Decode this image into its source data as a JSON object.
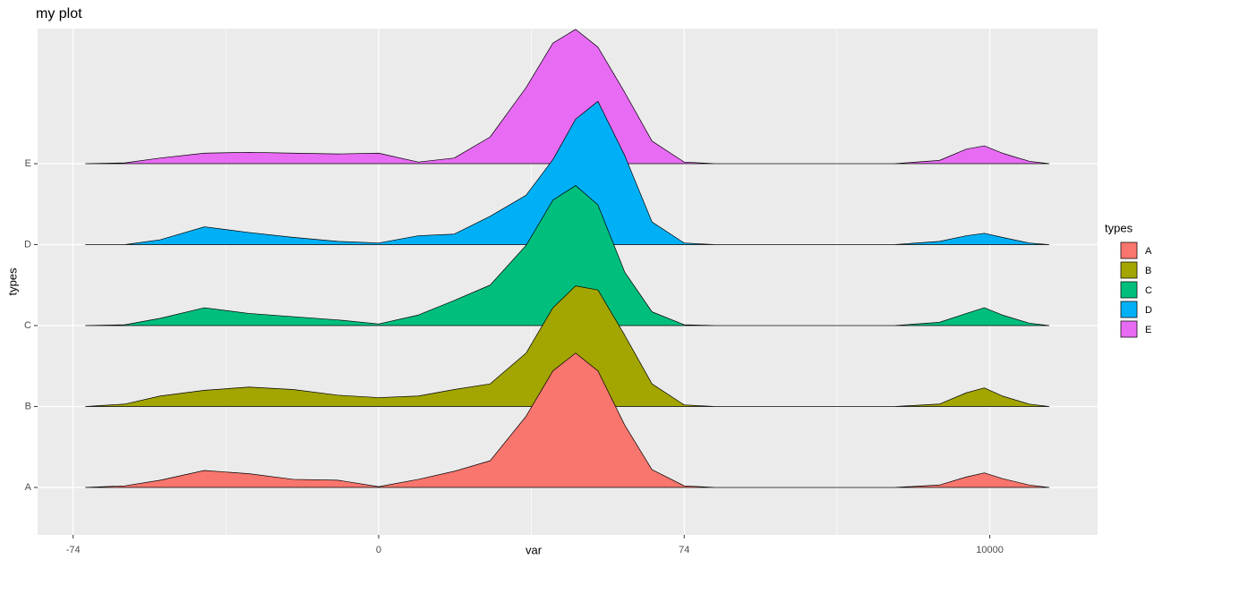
{
  "chart_data": {
    "type": "ridgeline",
    "title": "my plot",
    "xlabel": "var",
    "ylabel": "types",
    "legend_title": "types",
    "legend_position": "right",
    "grid": true,
    "categories": [
      "A",
      "B",
      "C",
      "D",
      "E"
    ],
    "xlim": [
      -82.6,
      13503
    ],
    "xticks": [
      -74,
      0,
      74,
      10000
    ],
    "x": [
      -71,
      -61.5,
      -52.9,
      -42.2,
      -31.4,
      -20.7,
      -9.9,
      0,
      9.6,
      18.3,
      27.0,
      35.7,
      42.2,
      47.7,
      53.1,
      59.6,
      66.2,
      74,
      1067,
      3986,
      6905,
      8364,
      9240,
      9824,
      10407,
      11283,
      11925
    ],
    "series": [
      {
        "name": "A",
        "color": "#F8766D",
        "values": [
          0,
          0.02,
          0.09,
          0.21,
          0.17,
          0.1,
          0.09,
          0.01,
          0.1,
          0.2,
          0.33,
          0.88,
          1.44,
          1.66,
          1.44,
          0.77,
          0.22,
          0.02,
          0,
          0,
          0,
          0.03,
          0.13,
          0.18,
          0.11,
          0.03,
          0
        ]
      },
      {
        "name": "B",
        "color": "#A3A500",
        "values": [
          0,
          0.03,
          0.13,
          0.2,
          0.24,
          0.21,
          0.14,
          0.11,
          0.13,
          0.21,
          0.28,
          0.66,
          1.22,
          1.49,
          1.44,
          0.88,
          0.28,
          0.02,
          0,
          0,
          0,
          0.03,
          0.17,
          0.23,
          0.13,
          0.03,
          0
        ]
      },
      {
        "name": "C",
        "color": "#00BF7D",
        "values": [
          0,
          0.01,
          0.09,
          0.22,
          0.15,
          0.11,
          0.07,
          0.02,
          0.13,
          0.31,
          0.5,
          0.99,
          1.55,
          1.73,
          1.49,
          0.66,
          0.17,
          0.01,
          0,
          0,
          0,
          0.04,
          0.15,
          0.22,
          0.13,
          0.03,
          0
        ]
      },
      {
        "name": "D",
        "color": "#00B0F6",
        "values": [
          0,
          0,
          0.06,
          0.22,
          0.15,
          0.09,
          0.04,
          0.02,
          0.11,
          0.13,
          0.35,
          0.61,
          1.05,
          1.55,
          1.77,
          1.1,
          0.28,
          0.02,
          0,
          0,
          0,
          0.04,
          0.11,
          0.14,
          0.09,
          0.02,
          0
        ]
      },
      {
        "name": "E",
        "color": "#E76BF3",
        "values": [
          0,
          0.01,
          0.07,
          0.13,
          0.14,
          0.13,
          0.12,
          0.13,
          0.02,
          0.07,
          0.33,
          0.94,
          1.49,
          1.66,
          1.44,
          0.88,
          0.28,
          0.02,
          0,
          0,
          0,
          0.04,
          0.18,
          0.22,
          0.13,
          0.03,
          0
        ]
      }
    ]
  }
}
